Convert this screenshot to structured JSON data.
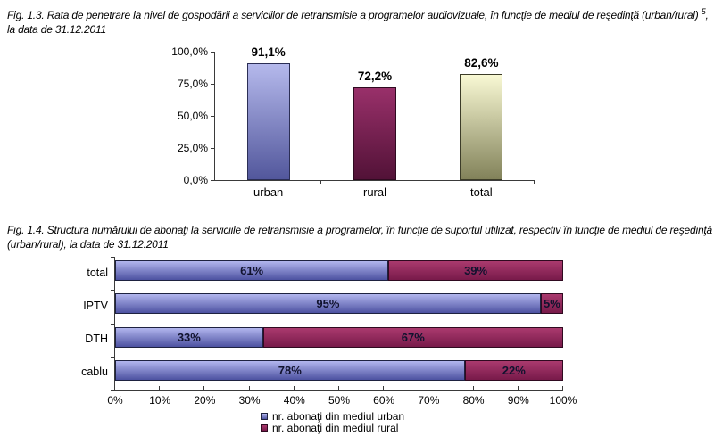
{
  "fig13": {
    "title_text": "Fig. 1.3. Rata de penetrare la nivel de gospodării a serviciilor de retransmisie a programelor audiovizuale, în funcţie de mediul de reşedinţă (urban/rural)",
    "title_superscript": "5",
    "title_after_superscript": ",",
    "title_line2": "la data de 31.12.2011"
  },
  "fig14": {
    "title_line1": "Fig. 1.4. Structura numărului de abonaţi la serviciile de retransmisie a programelor, în funcţie de suportul utilizat, respectiv în funcţie de mediul de reşedinţă",
    "title_line2": "(urban/rural), la data de 31.12.2011"
  },
  "chart_data": [
    {
      "id": "penetration-rate",
      "type": "bar",
      "title": "Rata de penetrare la nivel de gospodării a serviciilor de retransmisie a programelor audiovizuale, în funcţie de mediul de reşedinţă (urban/rural), la data de 31.12.2011",
      "categories": [
        "urban",
        "rural",
        "total"
      ],
      "values": [
        91.1,
        72.2,
        82.6
      ],
      "value_labels": [
        "91,1%",
        "72,2%",
        "82,6%"
      ],
      "y_tick_labels_top_down": [
        "100,0%",
        "75,0%",
        "50,0%",
        "25,0%",
        "0,0%"
      ],
      "ylim": [
        0,
        100
      ],
      "grid": false,
      "bar_styles": [
        {
          "color_top": "#b5b9ec",
          "color_bottom": "#52579c",
          "border": "#2b2e55"
        },
        {
          "color_top": "#99306a",
          "color_bottom": "#521237",
          "border": "#2f0a20"
        },
        {
          "color_top": "#f9f9d4",
          "color_bottom": "#82825a",
          "border": "#3c3c28"
        }
      ]
    },
    {
      "id": "subscriber-structure",
      "type": "bar-horizontal-stacked",
      "title": "Structura numărului de abonaţi la serviciile de retransmisie a programelor, în funcţie de suportul utilizat, respectiv în funcţie de mediul de reşedinţă (urban/rural), la data de 31.12.2011",
      "categories_top_down": [
        "total",
        "IPTV",
        "DTH",
        "cablu"
      ],
      "series": [
        {
          "name": "nr. abonaţi din mediul urban",
          "values": [
            61,
            95,
            33,
            78
          ],
          "labels": [
            "61%",
            "95%",
            "33%",
            "78%"
          ],
          "color_top": "#b2b6ee",
          "color_bottom": "#4d52a1",
          "border": "#1e2240",
          "legend_swatch": "#7d82d4"
        },
        {
          "name": "nr. abonaţi din mediul rural",
          "values": [
            39,
            5,
            67,
            22
          ],
          "labels": [
            "39%",
            "5%",
            "67%",
            "22%"
          ],
          "color_top": "#aa3a6e",
          "color_bottom": "#781a4a",
          "border": "#2f0a20",
          "legend_swatch": "#93285c"
        }
      ],
      "x_tick_labels": [
        "0%",
        "10%",
        "20%",
        "30%",
        "40%",
        "50%",
        "60%",
        "70%",
        "80%",
        "90%",
        "100%"
      ],
      "xlim": [
        0,
        100
      ],
      "grid": false,
      "legend_position": "bottom-center"
    }
  ]
}
